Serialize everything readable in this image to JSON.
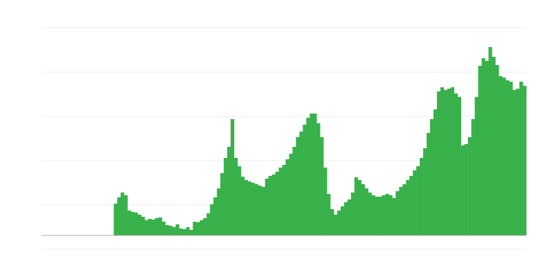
{
  "chart_data": {
    "type": "bar",
    "title": "",
    "xlabel": "",
    "ylabel": "",
    "ylim": [
      -20,
      300
    ],
    "grid": true,
    "gridlines": [
      300,
      236,
      172,
      108,
      44,
      -20
    ],
    "bar_color": "#39b14b",
    "baseline_color": "#aaaaaa",
    "grid_color": "#eeeeee",
    "values": [
      0,
      0,
      0,
      0,
      0,
      0,
      0,
      0,
      0,
      0,
      0,
      0,
      0,
      0,
      0,
      0,
      0,
      0,
      0,
      0,
      0,
      46,
      55,
      62,
      58,
      36,
      34,
      33,
      30,
      27,
      22,
      24,
      23,
      25,
      26,
      20,
      15,
      14,
      12,
      16,
      10,
      9,
      12,
      8,
      20,
      19,
      22,
      25,
      32,
      45,
      55,
      68,
      90,
      112,
      128,
      168,
      112,
      100,
      85,
      80,
      78,
      76,
      74,
      72,
      70,
      82,
      86,
      88,
      92,
      98,
      102,
      110,
      118,
      128,
      142,
      150,
      160,
      170,
      176,
      176,
      162,
      142,
      98,
      60,
      38,
      30,
      36,
      42,
      48,
      52,
      62,
      84,
      80,
      74,
      68,
      62,
      58,
      56,
      56,
      58,
      60,
      58,
      54,
      64,
      70,
      74,
      80,
      86,
      94,
      100,
      112,
      126,
      148,
      168,
      182,
      208,
      214,
      210,
      212,
      214,
      205,
      200,
      130,
      132,
      142,
      168,
      200,
      245,
      256,
      252,
      272,
      258,
      246,
      230,
      228,
      224,
      222,
      210,
      212,
      222,
      216
    ]
  }
}
